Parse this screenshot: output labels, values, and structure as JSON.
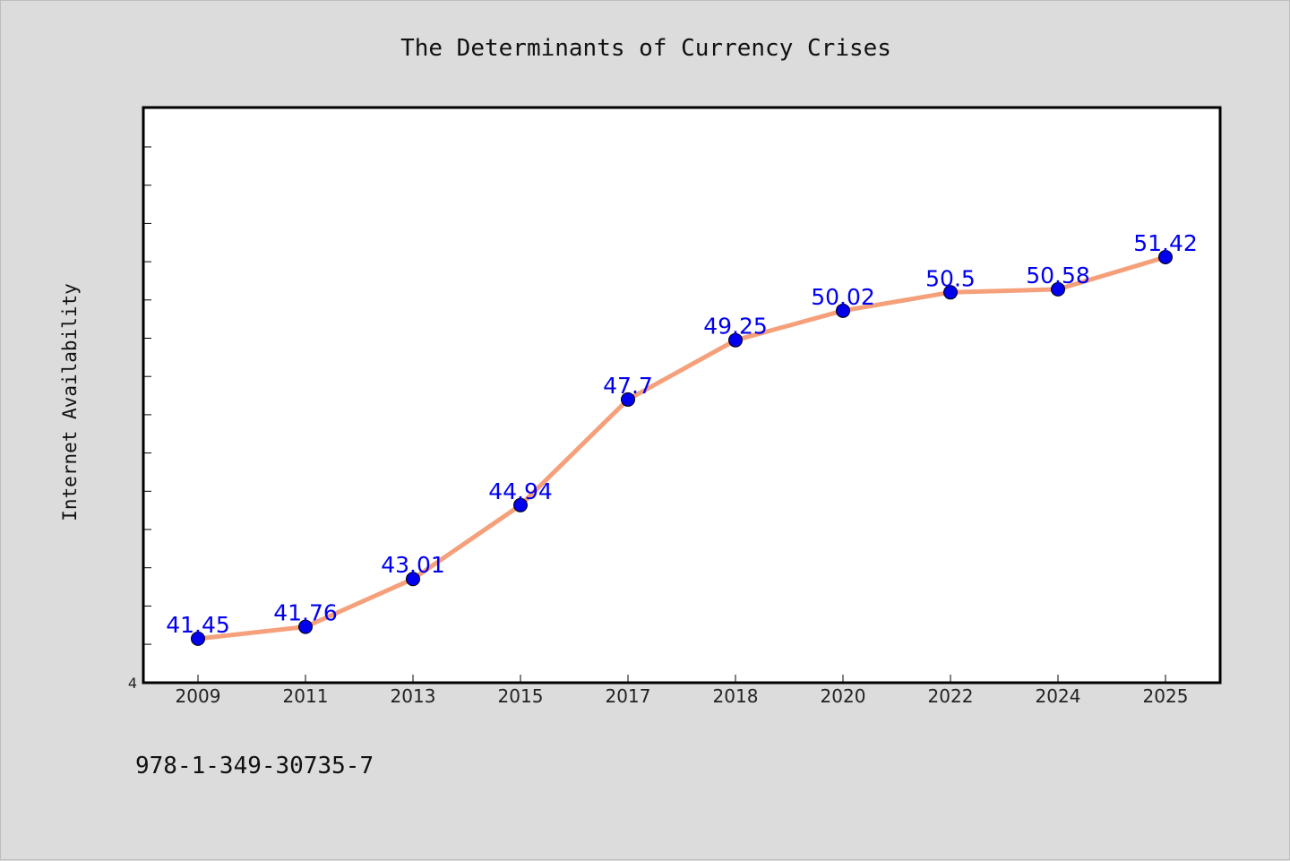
{
  "chart_data": {
    "type": "line",
    "title": "The Determinants of Currency Crises",
    "xlabel": "",
    "ylabel": "Internet Availability",
    "y_tick_label_visible": "4",
    "categories": [
      "2009",
      "2011",
      "2013",
      "2015",
      "2017",
      "2018",
      "2020",
      "2022",
      "2024",
      "2025"
    ],
    "series": [
      {
        "values": [
          41.45,
          41.76,
          43.01,
          44.94,
          47.7,
          49.25,
          50.02,
          50.5,
          50.58,
          51.42
        ],
        "labels": [
          "41.45",
          "41.76",
          "43.01",
          "44.94",
          "47.7",
          "49.25",
          "50.02",
          "50.5",
          "50.58",
          "51.42"
        ],
        "line_color": "#f5a07a",
        "marker_color": "#0000ee",
        "label_color": "#0000ee"
      }
    ],
    "ylim": [
      40.3,
      55.33
    ],
    "grid": false,
    "legend": "none"
  },
  "footer": {
    "isbn": "978-1-349-30735-7"
  },
  "colors": {
    "background": "#dcdcdc",
    "plot_background": "#ffffff",
    "axis": "#000000"
  }
}
